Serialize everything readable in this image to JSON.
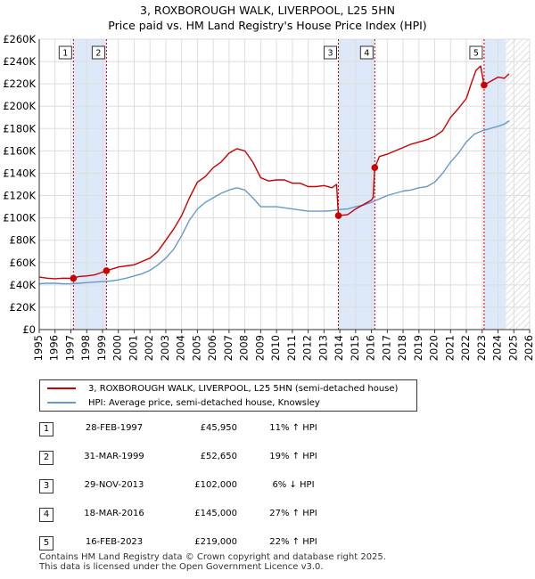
{
  "title_line1": "3, ROXBOROUGH WALK, LIVERPOOL, L25 5HN",
  "title_line2": "Price paid vs. HM Land Registry's House Price Index (HPI)",
  "colors": {
    "property": "#cc0000",
    "hpi": "#6699cc",
    "shade": "#dde8f8",
    "grid": "#dddddd"
  },
  "chart_data": {
    "type": "line",
    "xlim": [
      1995,
      2026
    ],
    "ylim": [
      0,
      260000
    ],
    "x_ticks": [
      1995,
      1996,
      1997,
      1998,
      1999,
      2000,
      2001,
      2002,
      2003,
      2004,
      2005,
      2006,
      2007,
      2008,
      2009,
      2010,
      2011,
      2012,
      2013,
      2014,
      2015,
      2016,
      2017,
      2018,
      2019,
      2020,
      2021,
      2022,
      2023,
      2024,
      2025,
      2026
    ],
    "y_ticks": [
      0,
      20000,
      40000,
      60000,
      80000,
      100000,
      120000,
      140000,
      160000,
      180000,
      200000,
      220000,
      240000,
      260000
    ],
    "y_tick_labels": [
      "£0",
      "£20K",
      "£40K",
      "£60K",
      "£80K",
      "£100K",
      "£120K",
      "£140K",
      "£160K",
      "£180K",
      "£200K",
      "£220K",
      "£240K",
      "£260K"
    ],
    "shaded_periods": [
      [
        1997.16,
        1999.25
      ],
      [
        2013.91,
        2016.21
      ],
      [
        2023.12,
        2024.5
      ]
    ],
    "hatched_future": [
      2024.5,
      2026
    ],
    "series": [
      {
        "name": "3, ROXBOROUGH WALK, LIVERPOOL, L25 5HN (semi-detached house)",
        "color": "#cc0000",
        "x": [
          1995,
          1995.5,
          1996,
          1996.5,
          1997.16,
          1997.5,
          1998,
          1998.5,
          1999.25,
          2000,
          2000.5,
          2001,
          2001.5,
          2002,
          2002.5,
          2003,
          2003.5,
          2004,
          2004.5,
          2005,
          2005.5,
          2006,
          2006.5,
          2007,
          2007.5,
          2008,
          2008.5,
          2009,
          2009.5,
          2010,
          2010.5,
          2011,
          2011.5,
          2012,
          2012.5,
          2013,
          2013.5,
          2013.8,
          2013.91,
          2014.5,
          2015,
          2015.5,
          2016,
          2016.1,
          2016.21,
          2016.5,
          2017,
          2017.5,
          2018,
          2018.5,
          2019,
          2019.5,
          2020,
          2020.5,
          2021,
          2021.5,
          2022,
          2022.3,
          2022.6,
          2022.9,
          2023.12,
          2023.5,
          2024,
          2024.4,
          2024.7
        ],
        "values": [
          47000,
          46000,
          45500,
          46000,
          45950,
          47500,
          48000,
          49000,
          52650,
          56000,
          57000,
          58000,
          61000,
          64000,
          70000,
          80000,
          90000,
          102000,
          118000,
          132000,
          137000,
          145000,
          150000,
          158000,
          162000,
          160000,
          150000,
          136000,
          133000,
          134000,
          134000,
          131000,
          131000,
          128000,
          128000,
          129000,
          127000,
          130000,
          102000,
          103000,
          108000,
          112000,
          116000,
          118000,
          145000,
          155000,
          157000,
          160000,
          163000,
          166000,
          168000,
          170000,
          173000,
          178000,
          190000,
          198000,
          207000,
          220000,
          232000,
          236000,
          219000,
          222000,
          226000,
          225000,
          229000
        ]
      },
      {
        "name": "HPI: Average price, semi-detached house, Knowsley",
        "color": "#6699cc",
        "x": [
          1995,
          1995.5,
          1996,
          1996.5,
          1997,
          1997.5,
          1998,
          1998.5,
          1999,
          1999.5,
          2000,
          2000.5,
          2001,
          2001.5,
          2002,
          2002.5,
          2003,
          2003.5,
          2004,
          2004.5,
          2005,
          2005.5,
          2006,
          2006.5,
          2007,
          2007.5,
          2008,
          2008.5,
          2009,
          2009.5,
          2010,
          2010.5,
          2011,
          2011.5,
          2012,
          2012.5,
          2013,
          2013.5,
          2014,
          2014.5,
          2015,
          2015.5,
          2016,
          2016.5,
          2017,
          2017.5,
          2018,
          2018.5,
          2019,
          2019.5,
          2020,
          2020.5,
          2021,
          2021.5,
          2022,
          2022.5,
          2023,
          2023.5,
          2024,
          2024.4,
          2024.7
        ],
        "values": [
          41000,
          41500,
          41500,
          41000,
          41000,
          41500,
          42000,
          42500,
          43000,
          43500,
          44500,
          46000,
          48000,
          50000,
          53000,
          58000,
          64000,
          72000,
          84000,
          98000,
          108000,
          114000,
          118000,
          122000,
          125000,
          127000,
          125000,
          118000,
          110000,
          110000,
          110000,
          109000,
          108000,
          107000,
          106000,
          106000,
          106000,
          106500,
          107500,
          108000,
          110000,
          111500,
          114000,
          117000,
          120000,
          122000,
          124000,
          125000,
          127000,
          128000,
          132000,
          140000,
          150000,
          158000,
          168000,
          175000,
          178000,
          180000,
          182000,
          184000,
          187000
        ]
      }
    ],
    "markers": [
      {
        "label": "1",
        "x": 1997.16,
        "value": 45950
      },
      {
        "label": "2",
        "x": 1999.25,
        "value": 52650
      },
      {
        "label": "3",
        "x": 2013.91,
        "value": 102000
      },
      {
        "label": "4",
        "x": 2016.21,
        "value": 145000
      },
      {
        "label": "5",
        "x": 2023.12,
        "value": 219000
      }
    ]
  },
  "legend": {
    "property_label": "3, ROXBOROUGH WALK, LIVERPOOL, L25 5HN (semi-detached house)",
    "hpi_label": "HPI: Average price, semi-detached house, Knowsley"
  },
  "sales": [
    {
      "num": "1",
      "date": "28-FEB-1997",
      "price": "£45,950",
      "hpi": "11% ↑ HPI"
    },
    {
      "num": "2",
      "date": "31-MAR-1999",
      "price": "£52,650",
      "hpi": "19% ↑ HPI"
    },
    {
      "num": "3",
      "date": "29-NOV-2013",
      "price": "£102,000",
      "hpi": "6% ↓ HPI"
    },
    {
      "num": "4",
      "date": "18-MAR-2016",
      "price": "£145,000",
      "hpi": "27% ↑ HPI"
    },
    {
      "num": "5",
      "date": "16-FEB-2023",
      "price": "£219,000",
      "hpi": "22% ↑ HPI"
    }
  ],
  "footer_line1": "Contains HM Land Registry data © Crown copyright and database right 2025.",
  "footer_line2": "This data is licensed under the Open Government Licence v3.0."
}
